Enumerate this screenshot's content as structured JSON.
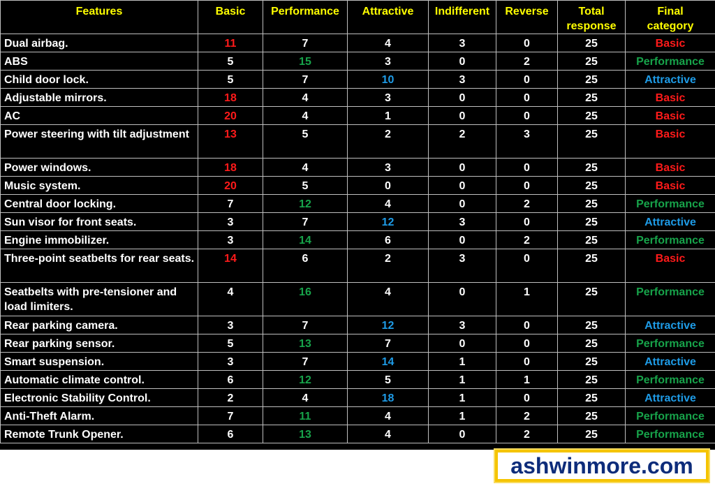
{
  "headers": [
    "Features",
    "Basic",
    "Performance",
    "Attractive",
    "Indifferent",
    "Reverse",
    "Total response",
    "Final category"
  ],
  "header_lines": {
    "total": [
      "Total",
      "response"
    ],
    "final": [
      "Final",
      "category"
    ]
  },
  "colors": {
    "header": "#ffff00",
    "basic": "#ff1a1a",
    "performance": "#17a34a",
    "attractive": "#1e9be6",
    "text": "#ffffff",
    "background": "#000000",
    "logo_border": "#f5c400",
    "logo_text": "#0d2c7a"
  },
  "rows": [
    {
      "feature": "Dual airbag.",
      "basic": "11",
      "performance": "7",
      "attractive": "4",
      "indifferent": "3",
      "reverse": "0",
      "total": "25",
      "category": "Basic"
    },
    {
      "feature": "ABS",
      "basic": "5",
      "performance": "15",
      "attractive": "3",
      "indifferent": "0",
      "reverse": "2",
      "total": "25",
      "category": "Performance"
    },
    {
      "feature": "Child door lock.",
      "basic": "5",
      "performance": "7",
      "attractive": "10",
      "indifferent": "3",
      "reverse": "0",
      "total": "25",
      "category": "Attractive"
    },
    {
      "feature": "Adjustable mirrors.",
      "basic": "18",
      "performance": "4",
      "attractive": "3",
      "indifferent": "0",
      "reverse": "0",
      "total": "25",
      "category": "Basic"
    },
    {
      "feature": "AC",
      "basic": "20",
      "performance": "4",
      "attractive": "1",
      "indifferent": "0",
      "reverse": "0",
      "total": "25",
      "category": "Basic"
    },
    {
      "feature": "Power steering with tilt adjustment",
      "basic": "13",
      "performance": "5",
      "attractive": "2",
      "indifferent": "2",
      "reverse": "3",
      "total": "25",
      "category": "Basic"
    },
    {
      "feature": "Power windows.",
      "basic": "18",
      "performance": "4",
      "attractive": "3",
      "indifferent": "0",
      "reverse": "0",
      "total": "25",
      "category": "Basic"
    },
    {
      "feature": "Music system.",
      "basic": "20",
      "performance": "5",
      "attractive": "0",
      "indifferent": "0",
      "reverse": "0",
      "total": "25",
      "category": "Basic"
    },
    {
      "feature": "Central door locking.",
      "basic": "7",
      "performance": "12",
      "attractive": "4",
      "indifferent": "0",
      "reverse": "2",
      "total": "25",
      "category": "Performance"
    },
    {
      "feature": "Sun visor for front seats.",
      "basic": "3",
      "performance": "7",
      "attractive": "12",
      "indifferent": "3",
      "reverse": "0",
      "total": "25",
      "category": "Attractive"
    },
    {
      "feature": "Engine immobilizer.",
      "basic": "3",
      "performance": "14",
      "attractive": "6",
      "indifferent": "0",
      "reverse": "2",
      "total": "25",
      "category": "Performance"
    },
    {
      "feature": "Three-point seatbelts for rear seats.",
      "basic": "14",
      "performance": "6",
      "attractive": "2",
      "indifferent": "3",
      "reverse": "0",
      "total": "25",
      "category": "Basic"
    },
    {
      "feature": "Seatbelts with pre-tensioner and load limiters.",
      "basic": "4",
      "performance": "16",
      "attractive": "4",
      "indifferent": "0",
      "reverse": "1",
      "total": "25",
      "category": "Performance"
    },
    {
      "feature": "Rear parking camera.",
      "basic": "3",
      "performance": "7",
      "attractive": "12",
      "indifferent": "3",
      "reverse": "0",
      "total": "25",
      "category": "Attractive"
    },
    {
      "feature": "Rear parking sensor.",
      "basic": "5",
      "performance": "13",
      "attractive": "7",
      "indifferent": "0",
      "reverse": "0",
      "total": "25",
      "category": "Performance"
    },
    {
      "feature": "Smart suspension.",
      "basic": "3",
      "performance": "7",
      "attractive": "14",
      "indifferent": "1",
      "reverse": "0",
      "total": "25",
      "category": "Attractive"
    },
    {
      "feature": "Automatic climate control.",
      "basic": "6",
      "performance": "12",
      "attractive": "5",
      "indifferent": "1",
      "reverse": "1",
      "total": "25",
      "category": "Performance"
    },
    {
      "feature": "Electronic Stability Control.",
      "basic": "2",
      "performance": "4",
      "attractive": "18",
      "indifferent": "1",
      "reverse": "0",
      "total": "25",
      "category": "Attractive"
    },
    {
      "feature": "Anti-Theft Alarm.",
      "basic": "7",
      "performance": "11",
      "attractive": "4",
      "indifferent": "1",
      "reverse": "2",
      "total": "25",
      "category": "Performance"
    },
    {
      "feature": "Remote Trunk Opener.",
      "basic": "6",
      "performance": "13",
      "attractive": "4",
      "indifferent": "0",
      "reverse": "2",
      "total": "25",
      "category": "Performance"
    }
  ],
  "watermark": "ashwinmore.com"
}
